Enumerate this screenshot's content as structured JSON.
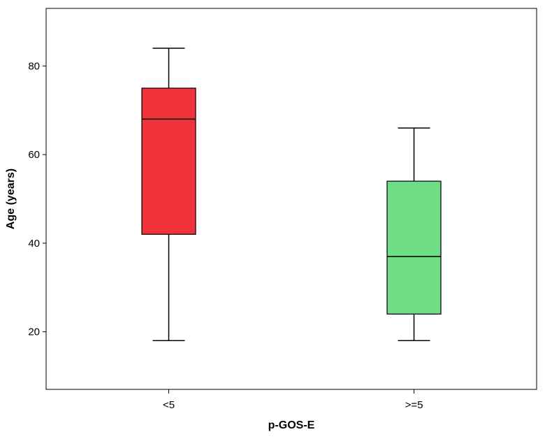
{
  "chart_data": {
    "type": "boxplot",
    "xlabel": "p-GOS-E",
    "ylabel": "Age (years)",
    "ylim": [
      7,
      93
    ],
    "yticks": [
      20,
      40,
      60,
      80
    ],
    "grid": false,
    "categories": [
      "<5",
      ">=5"
    ],
    "boxes": [
      {
        "category": "<5",
        "min": 18,
        "q1": 42,
        "median": 68,
        "q3": 75,
        "max": 84,
        "color": "#f0323a"
      },
      {
        "category": ">=5",
        "min": 18,
        "q1": 24,
        "median": 37,
        "q3": 54,
        "max": 66,
        "color": "#6fdc86"
      }
    ]
  }
}
